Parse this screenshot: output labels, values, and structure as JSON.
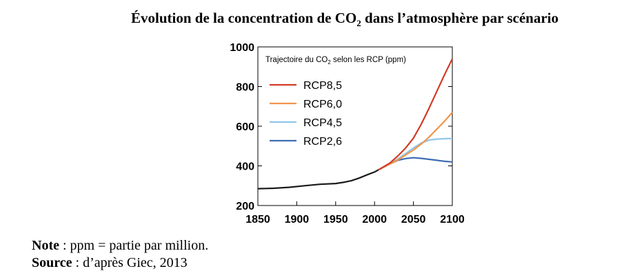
{
  "header": {
    "title_prefix": "Évolution de la concentration de CO",
    "title_sub": "2",
    "title_suffix": " dans l’atmosphère par scénario"
  },
  "footer": {
    "note_label": "Note",
    "note_text": " : ppm = partie par million.",
    "source_label": "Source",
    "source_text": " : d’après Giec, 2013"
  },
  "chart_data": {
    "type": "line",
    "title": "Trajectoire du CO₂ selon les RCP (ppm)",
    "xlabel": "",
    "ylabel": "",
    "xlim": [
      1850,
      2100
    ],
    "ylim": [
      200,
      1000
    ],
    "xticks": [
      1850,
      1900,
      1950,
      2000,
      2050,
      2100
    ],
    "yticks": [
      200,
      400,
      600,
      800,
      1000
    ],
    "grid": false,
    "legend_position": "top-left",
    "historical": {
      "color": "#1a1a1a",
      "x": [
        1850,
        1870,
        1890,
        1910,
        1930,
        1950,
        1960,
        1970,
        1980,
        1990,
        2000,
        2005
      ],
      "y": [
        285,
        287,
        292,
        300,
        307,
        311,
        317,
        325,
        338,
        354,
        369,
        380
      ]
    },
    "series": [
      {
        "name": "RCP8,5",
        "color": "#d23a26",
        "x": [
          2005,
          2020,
          2030,
          2040,
          2050,
          2060,
          2070,
          2080,
          2090,
          2100
        ],
        "y": [
          380,
          415,
          450,
          490,
          540,
          610,
          690,
          775,
          860,
          940
        ]
      },
      {
        "name": "RCP6,0",
        "color": "#f2954a",
        "x": [
          2005,
          2020,
          2030,
          2040,
          2050,
          2060,
          2070,
          2080,
          2090,
          2100
        ],
        "y": [
          380,
          410,
          430,
          455,
          480,
          510,
          545,
          585,
          625,
          670
        ]
      },
      {
        "name": "RCP4,5",
        "color": "#8fc6ea",
        "x": [
          2005,
          2020,
          2030,
          2040,
          2050,
          2060,
          2070,
          2080,
          2090,
          2100
        ],
        "y": [
          380,
          410,
          435,
          462,
          490,
          515,
          530,
          535,
          537,
          538
        ]
      },
      {
        "name": "RCP2,6",
        "color": "#3d6db5",
        "x": [
          2005,
          2020,
          2030,
          2040,
          2050,
          2060,
          2070,
          2080,
          2090,
          2100
        ],
        "y": [
          380,
          410,
          428,
          437,
          441,
          438,
          433,
          428,
          423,
          420
        ]
      }
    ]
  }
}
